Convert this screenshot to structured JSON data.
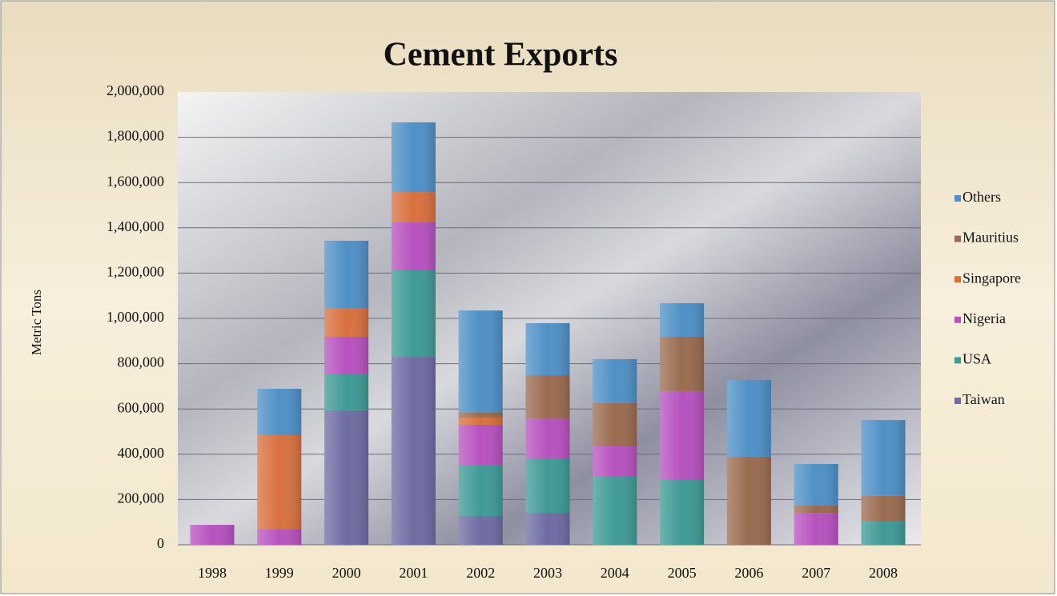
{
  "chart_data": {
    "type": "stacked_bar",
    "title": "Cement Exports",
    "ylabel": "Metric Tons",
    "categories": [
      "1998",
      "1999",
      "2000",
      "2001",
      "2002",
      "2003",
      "2004",
      "2005",
      "2006",
      "2007",
      "2008"
    ],
    "series": [
      {
        "name": "Taiwan",
        "color": "#6e6ca3",
        "values": [
          0,
          0,
          594000,
          830000,
          127000,
          141000,
          0,
          0,
          0,
          0,
          0
        ]
      },
      {
        "name": "USA",
        "color": "#3f9a95",
        "values": [
          0,
          0,
          159000,
          382000,
          226000,
          241000,
          304000,
          286000,
          0,
          0,
          106000
        ]
      },
      {
        "name": "Nigeria",
        "color": "#b752bf",
        "values": [
          88000,
          70000,
          166000,
          212000,
          177000,
          176000,
          131000,
          393000,
          0,
          141000,
          0
        ]
      },
      {
        "name": "Singapore",
        "color": "#d8703e",
        "values": [
          0,
          414000,
          127000,
          134000,
          32000,
          0,
          0,
          0,
          0,
          0,
          0
        ]
      },
      {
        "name": "Mauritius",
        "color": "#9a6b50",
        "values": [
          0,
          0,
          0,
          0,
          21000,
          191000,
          191000,
          240000,
          389000,
          32000,
          110000
        ]
      },
      {
        "name": "Others",
        "color": "#4f90c6",
        "values": [
          0,
          205000,
          297000,
          308000,
          452000,
          230000,
          194000,
          148000,
          339000,
          184000,
          335000
        ]
      }
    ],
    "ylim": [
      0,
      2000000
    ],
    "yticks": [
      0,
      {
        "value": 200000,
        "label": "200,000"
      },
      {
        "value": 400000,
        "label": "400,000"
      },
      {
        "value": 600000,
        "label": "600,000"
      },
      {
        "value": 800000,
        "label": "800,000"
      },
      {
        "value": 1000000,
        "label": "1,000,000"
      },
      {
        "value": 1200000,
        "label": "1,200,000"
      },
      {
        "value": 1400000,
        "label": "1,400,000"
      },
      {
        "value": 1600000,
        "label": "1,600,000"
      },
      {
        "value": 1800000,
        "label": "1,800,000"
      },
      {
        "value": 2000000,
        "label": "2,000,000"
      }
    ],
    "grid": true,
    "legend": "right"
  }
}
